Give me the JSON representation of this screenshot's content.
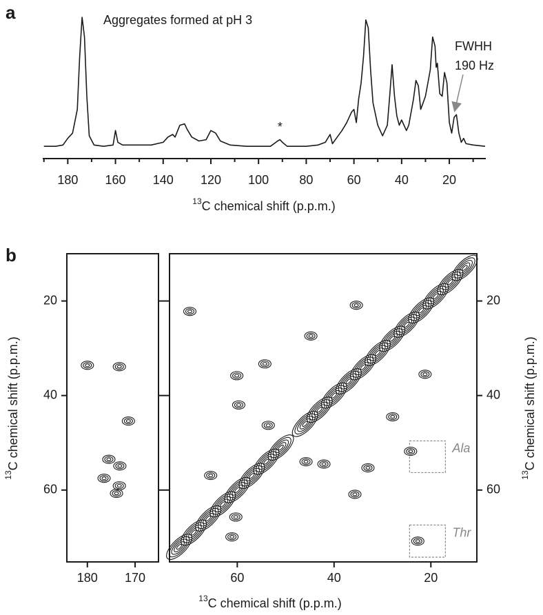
{
  "chart_data": [
    {
      "type": "line",
      "panel": "a",
      "title": "Aggregates formed at pH 3",
      "xlabel_sup": "13",
      "xlabel": "C chemical shift (p.p.m.)",
      "xlim": [
        190.5,
        4.7
      ],
      "xticks": [
        180,
        160,
        140,
        120,
        100,
        80,
        60,
        40,
        20
      ],
      "xminorticks": [
        190,
        170,
        150,
        130,
        110,
        90,
        70,
        50,
        30,
        10
      ],
      "x": [
        190,
        185,
        182,
        180,
        178,
        176,
        175,
        174,
        173,
        172,
        171,
        169,
        165,
        161,
        160,
        159,
        157,
        150,
        145,
        140,
        138,
        136,
        135,
        133,
        131,
        130,
        128,
        125,
        122,
        120,
        118,
        116,
        112,
        105,
        100,
        95,
        92,
        91,
        90,
        88,
        80,
        75,
        72,
        70,
        69,
        67,
        65,
        63,
        61,
        60,
        59,
        58,
        57,
        56,
        55,
        54,
        53,
        52,
        50,
        48,
        46,
        45,
        44,
        43,
        42,
        41,
        40,
        38,
        37,
        35,
        34,
        33,
        32,
        31,
        30,
        29,
        28,
        27,
        26,
        25.5,
        25,
        24,
        23,
        22,
        21,
        20,
        19,
        18,
        17,
        16,
        15,
        14,
        13,
        10,
        5
      ],
      "values": [
        2,
        2,
        3,
        8,
        12,
        30,
        70,
        100,
        85,
        40,
        10,
        3,
        2,
        3,
        14,
        5,
        3,
        3,
        3,
        5,
        9,
        11,
        9,
        18,
        19,
        15,
        9,
        6,
        7,
        14,
        12,
        6,
        3,
        2,
        2,
        2,
        6,
        7,
        5,
        2,
        2,
        3,
        5,
        11,
        4,
        9,
        14,
        20,
        28,
        30,
        20,
        38,
        50,
        70,
        98,
        92,
        60,
        35,
        18,
        10,
        18,
        40,
        64,
        40,
        25,
        18,
        22,
        14,
        18,
        38,
        52,
        48,
        30,
        35,
        40,
        50,
        60,
        85,
        78,
        62,
        65,
        42,
        40,
        58,
        50,
        20,
        12,
        24,
        26,
        12,
        5,
        8,
        4,
        3,
        2
      ],
      "color": "#1a1a1a",
      "annotations": [
        {
          "text": "*",
          "x": 91,
          "y": 16
        }
      ],
      "fwhh": [
        "FWHH",
        "190 Hz"
      ]
    },
    {
      "type": "contour",
      "panel": "b",
      "ylabel_sup": "13",
      "ylabel": "C chemical shift (p.p.m.)",
      "xlim": [
        184.3,
        165.1
      ],
      "ylim": [
        10,
        75.2
      ],
      "xticks": [
        180,
        170
      ],
      "yticks": [
        20,
        40,
        60
      ],
      "peaks": {
        "x": [
          180,
          173.3,
          171.4,
          173.2,
          173.3,
          173.9,
          175.5,
          176.5
        ],
        "y": [
          33.6,
          33.9,
          45.4,
          54.9,
          59.1,
          60.7,
          53.5,
          57.5
        ]
      },
      "color": "#1a1a1a"
    },
    {
      "type": "contour",
      "xlabel_sup": "13",
      "xlabel": "C chemical shift (p.p.m.)",
      "ylabel_sup": "13",
      "ylabel": "C chemical shift (p.p.m.)",
      "xlim": [
        74,
        10.5
      ],
      "ylim": [
        10,
        75.2
      ],
      "xticks": [
        60,
        40,
        20
      ],
      "yticks": [
        20,
        40,
        60
      ],
      "peaks": {
        "x": [
          69.8,
          60.1,
          54.3,
          44.8,
          35.4,
          21.2,
          59.7,
          27.9,
          53.6,
          45.8,
          33.0,
          42.1,
          65.5,
          35.7,
          60.3,
          61.1,
          24.2,
          22.7
        ],
        "y": [
          22.2,
          35.8,
          33.3,
          27.4,
          20.9,
          35.5,
          42.0,
          44.5,
          46.3,
          54.0,
          55.3,
          54.5,
          56.9,
          60.9,
          65.7,
          69.9,
          51.8,
          70.8
        ]
      },
      "diagonal": {
        "x": [
          72,
          69,
          66,
          63,
          60,
          57,
          54,
          51,
          46,
          43,
          40,
          37,
          34,
          31,
          28,
          25,
          22,
          19,
          16,
          13
        ],
        "y": [
          72,
          69,
          66,
          63,
          60,
          57,
          54,
          51,
          46,
          43,
          40,
          37,
          34,
          31,
          28,
          25,
          22,
          19,
          16,
          13
        ]
      },
      "boxes": [
        {
          "label": "Ala",
          "x": [
            24.4,
            17.0
          ],
          "y": [
            49.6,
            56.3
          ]
        },
        {
          "label": "Thr",
          "x": [
            24.4,
            17.0
          ],
          "y": [
            67.4,
            74.2
          ]
        }
      ],
      "color": "#1a1a1a"
    }
  ]
}
